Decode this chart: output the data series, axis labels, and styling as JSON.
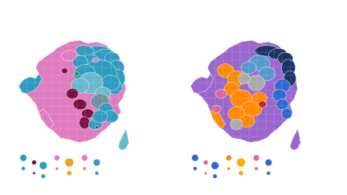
{
  "background_color": "#ffffff",
  "figsize": [
    4.32,
    2.43
  ],
  "dpi": 100,
  "left_map": {
    "main_color": "#e07bc0",
    "colors": {
      "pink": "#e07bc0",
      "blue": "#2f9bc0",
      "light_blue": "#6ab8cc",
      "dark_red": "#7a1040",
      "steel_blue": "#7090a0",
      "green": "#2a7a30",
      "dark_blue": "#1a5080",
      "orange": "#f0a020",
      "red": "#cc2020"
    }
  },
  "right_map": {
    "main_color": "#9966cc",
    "colors": {
      "purple": "#9966cc",
      "blue": "#3366cc",
      "orange": "#ff8800",
      "light_blue": "#5599cc",
      "gray": "#aaaaaa",
      "pink": "#dd6699",
      "dark_blue": "#1a3366",
      "red": "#cc2020",
      "yellow_orange": "#ffaa00"
    }
  }
}
